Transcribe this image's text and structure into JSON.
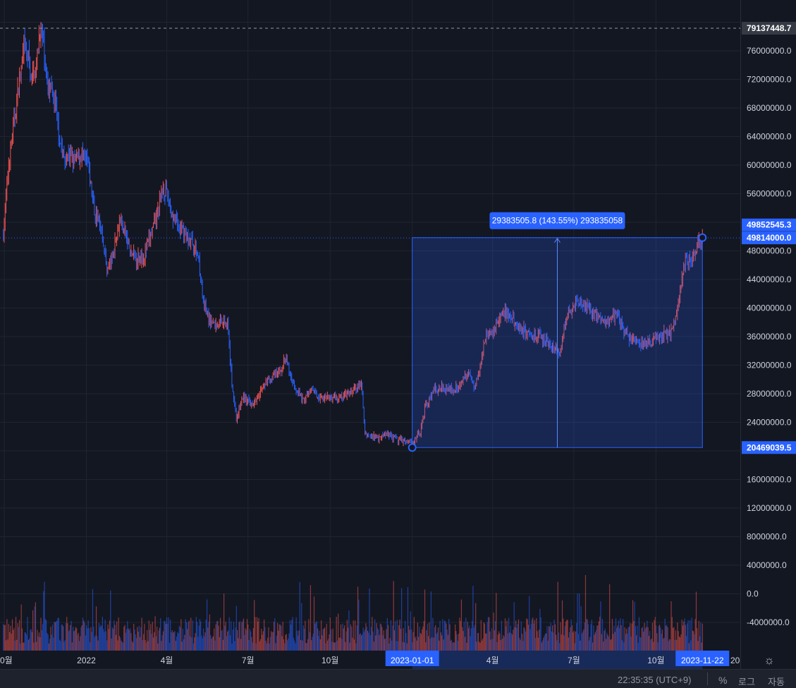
{
  "chart_data": {
    "type": "candlestick",
    "y_axis": {
      "ticks": [
        76000000,
        72000000,
        68000000,
        64000000,
        60000000,
        56000000,
        48000000,
        44000000,
        40000000,
        36000000,
        32000000,
        28000000,
        24000000,
        16000000,
        12000000,
        8000000,
        4000000,
        0,
        -4000000
      ],
      "tick_labels": [
        "76000000.0",
        "72000000.0",
        "68000000.0",
        "64000000.0",
        "60000000.0",
        "56000000.0",
        "48000000.0",
        "44000000.0",
        "40000000.0",
        "36000000.0",
        "32000000.0",
        "28000000.0",
        "24000000.0",
        "16000000.0",
        "12000000.0",
        "8000000.0",
        "4000000.0",
        "0.0",
        "-4000000.0"
      ],
      "ylim": [
        -8500000,
        81500000
      ]
    },
    "x_axis": {
      "ticks": [
        "2021-10-01",
        "2022-01-01",
        "2022-04-01",
        "2022-07-01",
        "2022-10-01",
        "2023-04-01",
        "2023-07-01",
        "2023-10-01"
      ],
      "tick_labels": [
        "0월",
        "2022",
        "4월",
        "7월",
        "10월",
        "4월",
        "7월",
        "10월"
      ],
      "clipped_right_label": "20",
      "xlim": [
        "2021-09-30",
        "2024-01-05"
      ]
    },
    "price_path": [
      [
        "2021-09-30",
        50500000
      ],
      [
        "2021-10-06",
        60000000
      ],
      [
        "2021-10-12",
        66000000
      ],
      [
        "2021-10-18",
        72000000
      ],
      [
        "2021-10-23",
        76000000
      ],
      [
        "2021-10-27",
        75500000
      ],
      [
        "2021-11-01",
        72000000
      ],
      [
        "2021-11-06",
        74000000
      ],
      [
        "2021-11-10",
        79000000
      ],
      [
        "2021-11-14",
        77000000
      ],
      [
        "2021-11-18",
        71000000
      ],
      [
        "2021-11-23",
        70000000
      ],
      [
        "2021-11-27",
        68500000
      ],
      [
        "2021-12-03",
        63000000
      ],
      [
        "2021-12-08",
        60500000
      ],
      [
        "2021-12-12",
        61500000
      ],
      [
        "2021-12-18",
        60500000
      ],
      [
        "2021-12-26",
        61500000
      ],
      [
        "2022-01-03",
        60000000
      ],
      [
        "2022-01-10",
        53500000
      ],
      [
        "2022-01-18",
        51000000
      ],
      [
        "2022-01-24",
        45500000
      ],
      [
        "2022-01-30",
        47000000
      ],
      [
        "2022-02-07",
        52500000
      ],
      [
        "2022-02-12",
        51000000
      ],
      [
        "2022-02-20",
        47500000
      ],
      [
        "2022-02-27",
        47000000
      ],
      [
        "2022-03-07",
        47500000
      ],
      [
        "2022-03-15",
        50500000
      ],
      [
        "2022-03-22",
        53500000
      ],
      [
        "2022-03-28",
        57000000
      ],
      [
        "2022-04-02",
        55500000
      ],
      [
        "2022-04-10",
        52000000
      ],
      [
        "2022-04-20",
        50500000
      ],
      [
        "2022-04-30",
        49000000
      ],
      [
        "2022-05-07",
        47000000
      ],
      [
        "2022-05-12",
        40500000
      ],
      [
        "2022-05-18",
        38500000
      ],
      [
        "2022-05-26",
        37500000
      ],
      [
        "2022-06-03",
        38500000
      ],
      [
        "2022-06-08",
        38000000
      ],
      [
        "2022-06-13",
        29500000
      ],
      [
        "2022-06-18",
        24500000
      ],
      [
        "2022-06-25",
        27500000
      ],
      [
        "2022-07-05",
        26500000
      ],
      [
        "2022-07-15",
        28500000
      ],
      [
        "2022-07-25",
        30000000
      ],
      [
        "2022-08-05",
        31000000
      ],
      [
        "2022-08-12",
        33000000
      ],
      [
        "2022-08-20",
        29500000
      ],
      [
        "2022-09-01",
        27000000
      ],
      [
        "2022-09-10",
        28500000
      ],
      [
        "2022-09-20",
        27500000
      ],
      [
        "2022-10-01",
        27500000
      ],
      [
        "2022-10-15",
        27500000
      ],
      [
        "2022-10-28",
        28500000
      ],
      [
        "2022-11-05",
        29500000
      ],
      [
        "2022-11-09",
        22500000
      ],
      [
        "2022-11-15",
        22000000
      ],
      [
        "2022-11-25",
        22000000
      ],
      [
        "2022-12-05",
        22500000
      ],
      [
        "2022-12-15",
        21500000
      ],
      [
        "2022-12-25",
        21500000
      ],
      [
        "2023-01-01",
        21300000
      ],
      [
        "2023-01-10",
        22500000
      ],
      [
        "2023-01-15",
        26000000
      ],
      [
        "2023-01-25",
        28500000
      ],
      [
        "2023-02-05",
        29000000
      ],
      [
        "2023-02-15",
        28500000
      ],
      [
        "2023-02-25",
        29500000
      ],
      [
        "2023-03-05",
        31000000
      ],
      [
        "2023-03-12",
        29000000
      ],
      [
        "2023-03-18",
        32000000
      ],
      [
        "2023-03-25",
        36000000
      ],
      [
        "2023-04-05",
        37500000
      ],
      [
        "2023-04-14",
        39500000
      ],
      [
        "2023-04-22",
        38500000
      ],
      [
        "2023-05-01",
        37500000
      ],
      [
        "2023-05-10",
        36500000
      ],
      [
        "2023-05-20",
        36000000
      ],
      [
        "2023-06-01",
        35500000
      ],
      [
        "2023-06-10",
        34000000
      ],
      [
        "2023-06-16",
        33500000
      ],
      [
        "2023-06-22",
        38500000
      ],
      [
        "2023-06-30",
        40500000
      ],
      [
        "2023-07-10",
        40500000
      ],
      [
        "2023-07-20",
        39500000
      ],
      [
        "2023-08-01",
        38500000
      ],
      [
        "2023-08-12",
        38500000
      ],
      [
        "2023-08-20",
        39000000
      ],
      [
        "2023-08-28",
        36000000
      ],
      [
        "2023-09-08",
        35500000
      ],
      [
        "2023-09-20",
        35000000
      ],
      [
        "2023-10-01",
        35500000
      ],
      [
        "2023-10-12",
        36500000
      ],
      [
        "2023-10-20",
        37000000
      ],
      [
        "2023-10-25",
        40000000
      ],
      [
        "2023-11-01",
        46000000
      ],
      [
        "2023-11-10",
        47000000
      ],
      [
        "2023-11-18",
        49000000
      ],
      [
        "2023-11-22",
        49800000
      ]
    ],
    "price_labels": {
      "top_dashed_line": "79137448.7",
      "upper_mark": "49852545.3",
      "current_price": "49814000.0",
      "range_low": "20469039.5"
    },
    "measure_tool": {
      "start_date": "2023-01-01",
      "end_date": "2023-11-22",
      "low": 20469039.5,
      "high": 49852545.3,
      "label": "29383505.8 (143.55%) 293835058",
      "x_start_label": "2023-01-01",
      "x_end_label": "2023-11-22"
    },
    "colors": {
      "up": "#ef5350",
      "down": "#2962ff",
      "background": "#131722",
      "grid": "#1f2430",
      "measure_fill": "#2962ff",
      "label_bg": "#2962ff",
      "dark_label_bg": "#363a45"
    }
  },
  "status_bar": {
    "time": "22:35:35 (UTC+9)",
    "percent": "%",
    "log": "로그",
    "auto": "자동"
  },
  "icons": {
    "settings": "gear-icon"
  }
}
